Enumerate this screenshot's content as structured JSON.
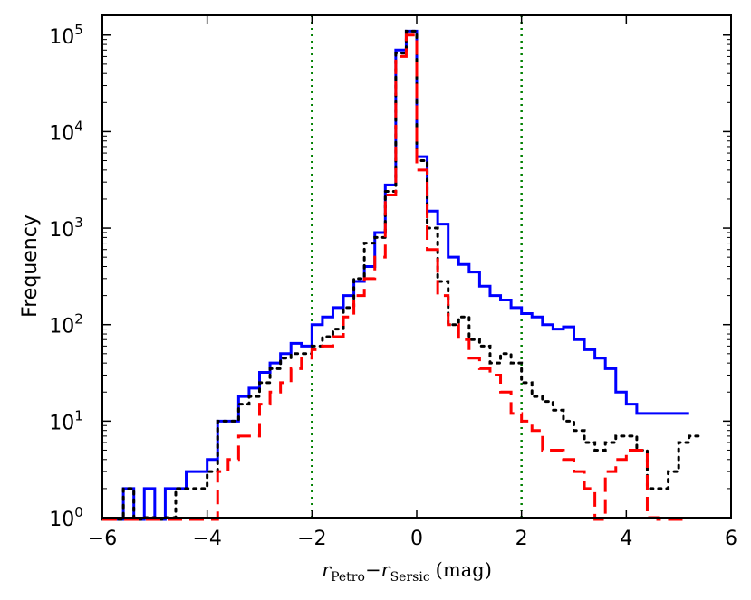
{
  "chart_data": {
    "type": "line",
    "style": "step-histogram",
    "title": "",
    "xlabel": "r_Petro − r_Sersic (mag)",
    "xlabel_parts": {
      "r1": "r",
      "sub1": "Petro",
      "minus": "−",
      "r2": "r",
      "sub2": "Sersic",
      "units": "(mag)"
    },
    "ylabel": "Frequency",
    "xlim": [
      -6,
      6
    ],
    "ylim": [
      1,
      160000
    ],
    "yscale": "log",
    "xticks": [
      -6,
      -4,
      -2,
      0,
      2,
      4,
      6
    ],
    "xtick_labels": [
      "−6",
      "−4",
      "−2",
      "0",
      "2",
      "4",
      "6"
    ],
    "yticks": [
      1,
      10,
      100,
      1000,
      10000,
      100000
    ],
    "ytick_labels": [
      {
        "base": "10",
        "exp": "0"
      },
      {
        "base": "10",
        "exp": "1"
      },
      {
        "base": "10",
        "exp": "2"
      },
      {
        "base": "10",
        "exp": "3"
      },
      {
        "base": "10",
        "exp": "4"
      },
      {
        "base": "10",
        "exp": "5"
      }
    ],
    "bin_edges_start": -6,
    "bin_width": 0.2,
    "series": [
      {
        "name": "blue-solid",
        "color": "#0000ff",
        "linestyle": "solid",
        "values": [
          0,
          0,
          2,
          0,
          2,
          0,
          2,
          2,
          3,
          3,
          4,
          10,
          10,
          18,
          22,
          32,
          40,
          50,
          64,
          60,
          100,
          120,
          150,
          200,
          280,
          400,
          900,
          2800,
          70000,
          110000,
          5500,
          1500,
          1100,
          500,
          420,
          350,
          250,
          200,
          180,
          150,
          130,
          120,
          100,
          90,
          95,
          70,
          55,
          45,
          35,
          20,
          15,
          12,
          12,
          12,
          12,
          12
        ]
      },
      {
        "name": "black-dotted",
        "color": "#000000",
        "linestyle": "dotted",
        "values": [
          0,
          0,
          2,
          0,
          1,
          0,
          1,
          2,
          2,
          2,
          3,
          10,
          10,
          15,
          18,
          25,
          35,
          45,
          50,
          50,
          60,
          75,
          90,
          150,
          300,
          700,
          800,
          2400,
          65000,
          110000,
          5000,
          1000,
          280,
          100,
          120,
          70,
          60,
          40,
          50,
          40,
          25,
          18,
          16,
          13,
          10,
          8,
          6,
          5,
          6,
          7,
          7,
          5,
          2,
          2,
          3,
          6,
          7
        ]
      },
      {
        "name": "red-dashed",
        "color": "#ff0000",
        "linestyle": "dashed",
        "values": [
          0,
          0,
          0,
          0,
          0,
          0,
          0,
          0,
          0,
          0,
          0,
          3,
          4,
          7,
          7,
          15,
          20,
          25,
          35,
          45,
          55,
          60,
          75,
          120,
          200,
          300,
          500,
          2200,
          60000,
          100000,
          4000,
          600,
          200,
          100,
          70,
          45,
          35,
          30,
          20,
          12,
          10,
          8,
          5,
          5,
          4,
          3,
          2,
          0,
          3,
          4,
          5,
          5,
          1,
          0,
          0,
          0
        ]
      }
    ],
    "vlines": [
      {
        "x": -2,
        "color": "#008000",
        "linestyle": "dotted"
      },
      {
        "x": 2,
        "color": "#008000",
        "linestyle": "dotted"
      }
    ]
  }
}
